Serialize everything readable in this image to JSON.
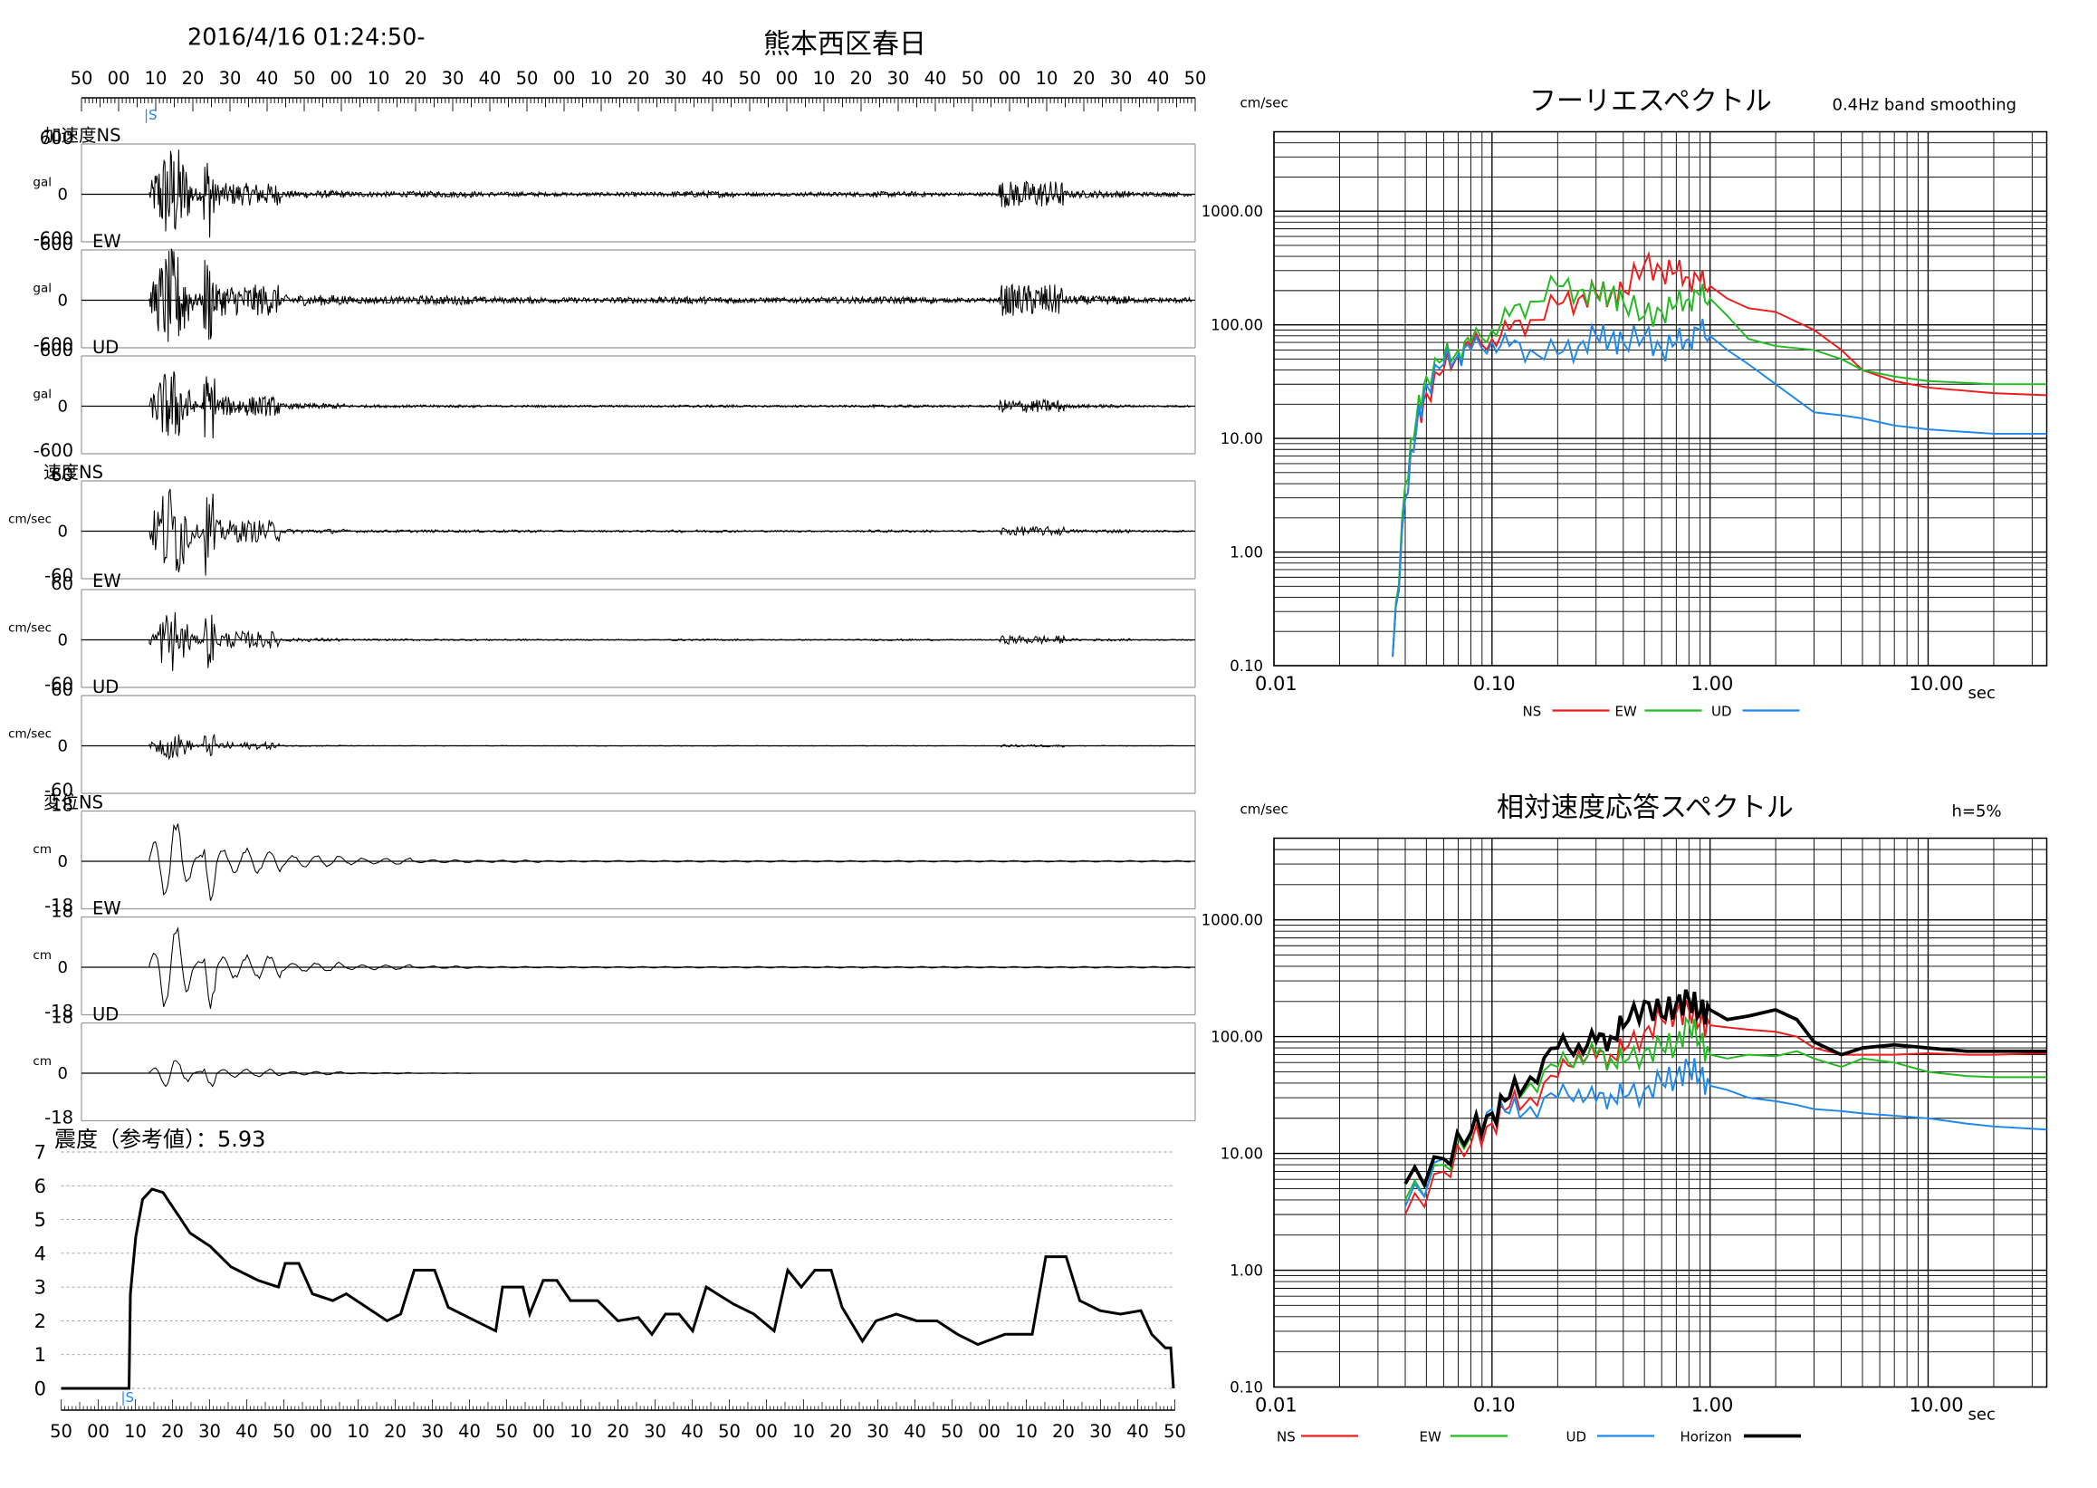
{
  "header": {
    "datetime": "2016/4/16 01:24:50-",
    "station": "熊本西区春日"
  },
  "time_axis": {
    "top_labels": [
      "50",
      "00",
      "10",
      "20",
      "30",
      "40",
      "50",
      "00",
      "10",
      "20",
      "30",
      "40",
      "50",
      "00",
      "10",
      "20",
      "30",
      "40",
      "50",
      "00",
      "10",
      "20",
      "30",
      "40",
      "50",
      "00",
      "10",
      "20",
      "30",
      "40",
      "50"
    ],
    "bottom_labels": [
      "50",
      "00",
      "10",
      "20",
      "30",
      "40",
      "50",
      "00",
      "10",
      "20",
      "30",
      "40",
      "50",
      "00",
      "10",
      "20",
      "30",
      "40",
      "50",
      "00",
      "10",
      "20",
      "30",
      "40",
      "50",
      "00",
      "10",
      "20",
      "30",
      "40",
      "50"
    ],
    "marker_top": "|S",
    "marker_bottom": "|S"
  },
  "waveforms": [
    {
      "group": "加速度",
      "component": "NS",
      "unit": "gal",
      "ymax": "600",
      "ymid": "0",
      "ymin": "-600",
      "amp": 0.95,
      "env": [
        1,
        0.25,
        0.08,
        0.06,
        0.07,
        0.05,
        0.04,
        0.05,
        0.07,
        0.04,
        0.05,
        0.06,
        0.04,
        0.3,
        0.08,
        0.05
      ]
    },
    {
      "group": "",
      "component": "EW",
      "unit": "gal",
      "ymax": "600",
      "ymid": "0",
      "ymin": "-600",
      "amp": 0.95,
      "env": [
        1,
        0.35,
        0.12,
        0.08,
        0.1,
        0.07,
        0.06,
        0.07,
        0.08,
        0.06,
        0.07,
        0.08,
        0.05,
        0.35,
        0.1,
        0.06
      ]
    },
    {
      "group": "",
      "component": "UD",
      "unit": "gal",
      "ymax": "600",
      "ymid": "0",
      "ymin": "-600",
      "amp": 0.7,
      "env": [
        1,
        0.3,
        0.08,
        0.04,
        0.04,
        0.03,
        0.03,
        0.03,
        0.04,
        0.03,
        0.03,
        0.04,
        0.03,
        0.2,
        0.05,
        0.03
      ]
    },
    {
      "group": "速度",
      "component": "NS",
      "unit": "cm/sec",
      "ymax": "60",
      "ymid": "0",
      "ymin": "-60",
      "amp": 0.95,
      "env": [
        1,
        0.25,
        0.05,
        0.03,
        0.03,
        0.03,
        0.02,
        0.02,
        0.03,
        0.02,
        0.02,
        0.03,
        0.02,
        0.1,
        0.04,
        0.02
      ]
    },
    {
      "group": "",
      "component": "EW",
      "unit": "cm/sec",
      "ymax": "60",
      "ymid": "0",
      "ymin": "-60",
      "amp": 0.6,
      "env": [
        1,
        0.3,
        0.06,
        0.03,
        0.03,
        0.03,
        0.02,
        0.02,
        0.03,
        0.02,
        0.02,
        0.03,
        0.02,
        0.15,
        0.04,
        0.02
      ]
    },
    {
      "group": "",
      "component": "UD",
      "unit": "cm/sec",
      "ymax": "60",
      "ymid": "0",
      "ymin": "-60",
      "amp": 0.25,
      "env": [
        1,
        0.3,
        0.05,
        0.02,
        0.02,
        0.02,
        0.02,
        0.02,
        0.02,
        0.02,
        0.02,
        0.02,
        0.02,
        0.1,
        0.03,
        0.02
      ]
    },
    {
      "group": "変位",
      "component": "NS",
      "unit": "cm",
      "ymax": "18",
      "ymid": "0",
      "ymin": "-18",
      "amp": 0.95,
      "env": [
        1,
        0.3,
        0.15,
        0.08,
        0.04,
        0.03,
        0.02,
        0.02,
        0.02,
        0.02,
        0.02,
        0.02,
        0.02,
        0.02,
        0.02,
        0.02
      ]
    },
    {
      "group": "",
      "component": "EW",
      "unit": "cm",
      "ymax": "18",
      "ymid": "0",
      "ymin": "-18",
      "amp": 0.9,
      "env": [
        1,
        0.3,
        0.12,
        0.06,
        0.03,
        0.02,
        0.02,
        0.02,
        0.02,
        0.02,
        0.02,
        0.02,
        0.02,
        0.02,
        0.02,
        0.02
      ]
    },
    {
      "group": "",
      "component": "UD",
      "unit": "cm",
      "ymax": "18",
      "ymid": "0",
      "ymin": "-18",
      "amp": 0.3,
      "env": [
        1,
        0.3,
        0.12,
        0.05,
        0.02,
        0,
        0,
        0,
        0,
        0,
        0,
        0,
        0,
        0,
        0,
        0
      ]
    }
  ],
  "intensity": {
    "label": "震度（参考値）：5.93",
    "yticks": [
      "7",
      "6",
      "5",
      "4",
      "3",
      "2",
      "1",
      "0"
    ]
  },
  "chart_data": [
    {
      "type": "line",
      "title": "フーリエスペクトル",
      "subtitle": "0.4Hz band smoothing",
      "ylabel": "cm/sec",
      "xlabel": "sec",
      "xscale": "log",
      "yscale": "log",
      "xlim": [
        0.01,
        35
      ],
      "ylim": [
        0.1,
        5000
      ],
      "xticks": [
        "0.01",
        "0.10",
        "1.00",
        "10.00"
      ],
      "yticks": [
        "0.10",
        "1.00",
        "10.00",
        "100.00",
        "1000.00"
      ],
      "legend": "bottom",
      "series": [
        {
          "name": "NS",
          "color": "#ee1c1c",
          "x": [
            0.035,
            0.04,
            0.045,
            0.05,
            0.06,
            0.07,
            0.08,
            0.1,
            0.12,
            0.15,
            0.2,
            0.25,
            0.3,
            0.35,
            0.4,
            0.5,
            0.6,
            0.7,
            0.8,
            0.9,
            1.0,
            1.2,
            1.5,
            2.0,
            3.0,
            4.0,
            5.0,
            7.0,
            10.0,
            20.0,
            35.0
          ],
          "y": [
            0.12,
            3,
            12,
            25,
            40,
            55,
            65,
            75,
            90,
            110,
            150,
            170,
            190,
            180,
            200,
            340,
            300,
            290,
            260,
            240,
            220,
            170,
            140,
            130,
            90,
            60,
            40,
            32,
            28,
            25,
            24
          ]
        },
        {
          "name": "EW",
          "color": "#22bb22",
          "x": [
            0.035,
            0.04,
            0.045,
            0.05,
            0.06,
            0.07,
            0.08,
            0.1,
            0.12,
            0.15,
            0.2,
            0.25,
            0.3,
            0.35,
            0.4,
            0.5,
            0.6,
            0.7,
            0.8,
            0.9,
            1.0,
            1.2,
            1.5,
            2.0,
            3.0,
            4.0,
            5.0,
            7.0,
            10.0,
            20.0,
            35.0
          ],
          "y": [
            0.12,
            4,
            15,
            35,
            50,
            60,
            70,
            90,
            120,
            160,
            220,
            200,
            180,
            190,
            160,
            120,
            130,
            150,
            170,
            180,
            170,
            120,
            75,
            65,
            60,
            50,
            40,
            35,
            32,
            30,
            30
          ]
        },
        {
          "name": "UD",
          "color": "#1f88ee",
          "x": [
            0.035,
            0.04,
            0.045,
            0.05,
            0.06,
            0.07,
            0.08,
            0.1,
            0.12,
            0.15,
            0.2,
            0.25,
            0.3,
            0.35,
            0.4,
            0.5,
            0.6,
            0.7,
            0.8,
            0.9,
            1.0,
            1.2,
            1.5,
            2.0,
            3.0,
            4.0,
            5.0,
            7.0,
            10.0,
            20.0,
            35.0
          ],
          "y": [
            0.12,
            3,
            12,
            30,
            45,
            55,
            60,
            70,
            65,
            60,
            55,
            65,
            80,
            75,
            70,
            80,
            60,
            70,
            75,
            90,
            80,
            60,
            45,
            30,
            17,
            16,
            15,
            13,
            12,
            11,
            11
          ]
        }
      ]
    },
    {
      "type": "line",
      "title": "相対速度応答スペクトル",
      "subtitle": "h=5%",
      "ylabel": "cm/sec",
      "xlabel": "sec",
      "xscale": "log",
      "yscale": "log",
      "xlim": [
        0.01,
        35
      ],
      "ylim": [
        0.1,
        5000
      ],
      "xticks": [
        "0.01",
        "0.10",
        "1.00",
        "10.00"
      ],
      "yticks": [
        "0.10",
        "1.00",
        "10.00",
        "100.00",
        "1000.00"
      ],
      "legend": "bottom",
      "series": [
        {
          "name": "NS",
          "color": "#ee1c1c",
          "x": [
            0.04,
            0.06,
            0.08,
            0.1,
            0.12,
            0.15,
            0.2,
            0.25,
            0.3,
            0.35,
            0.4,
            0.5,
            0.6,
            0.7,
            0.8,
            0.9,
            1.0,
            1.2,
            1.5,
            2.0,
            2.5,
            3.0,
            4.0,
            5.0,
            7.0,
            10.0,
            15.0,
            20.0,
            35.0
          ],
          "y": [
            3,
            7,
            12,
            18,
            25,
            30,
            45,
            75,
            65,
            70,
            75,
            110,
            140,
            160,
            170,
            130,
            125,
            120,
            115,
            110,
            100,
            80,
            70,
            70,
            70,
            72,
            70,
            70,
            72
          ]
        },
        {
          "name": "EW",
          "color": "#22bb22",
          "x": [
            0.04,
            0.06,
            0.08,
            0.1,
            0.12,
            0.15,
            0.2,
            0.25,
            0.3,
            0.35,
            0.4,
            0.5,
            0.6,
            0.7,
            0.8,
            0.9,
            1.0,
            1.2,
            1.5,
            2.0,
            2.5,
            3.0,
            4.0,
            5.0,
            7.0,
            10.0,
            15.0,
            20.0,
            35.0
          ],
          "y": [
            4,
            8,
            14,
            22,
            30,
            40,
            55,
            70,
            70,
            65,
            60,
            75,
            80,
            85,
            130,
            90,
            70,
            65,
            70,
            68,
            75,
            65,
            55,
            65,
            60,
            50,
            46,
            45,
            45
          ]
        },
        {
          "name": "UD",
          "color": "#1f88ee",
          "x": [
            0.04,
            0.06,
            0.08,
            0.1,
            0.12,
            0.15,
            0.2,
            0.25,
            0.3,
            0.35,
            0.4,
            0.5,
            0.6,
            0.7,
            0.8,
            0.9,
            1.0,
            1.2,
            1.5,
            2.0,
            2.5,
            3.0,
            4.0,
            5.0,
            7.0,
            10.0,
            15.0,
            20.0,
            35.0
          ],
          "y": [
            3.5,
            9,
            15,
            24,
            22,
            25,
            30,
            35,
            28,
            32,
            30,
            35,
            40,
            45,
            55,
            45,
            38,
            35,
            30,
            28,
            26,
            24,
            23,
            22,
            21,
            20,
            18,
            17,
            16
          ]
        },
        {
          "name": "Horizon",
          "color": "#000000",
          "x": [
            0.04,
            0.06,
            0.08,
            0.1,
            0.12,
            0.15,
            0.2,
            0.25,
            0.3,
            0.35,
            0.4,
            0.5,
            0.6,
            0.7,
            0.8,
            0.9,
            1.0,
            1.2,
            1.5,
            2.0,
            2.5,
            3.0,
            4.0,
            5.0,
            7.0,
            10.0,
            15.0,
            20.0,
            35.0
          ],
          "y": [
            5.5,
            9,
            15,
            22,
            30,
            45,
            80,
            85,
            90,
            100,
            120,
            200,
            150,
            190,
            210,
            160,
            170,
            140,
            150,
            170,
            140,
            90,
            70,
            80,
            85,
            80,
            75,
            75,
            75
          ]
        }
      ]
    }
  ]
}
